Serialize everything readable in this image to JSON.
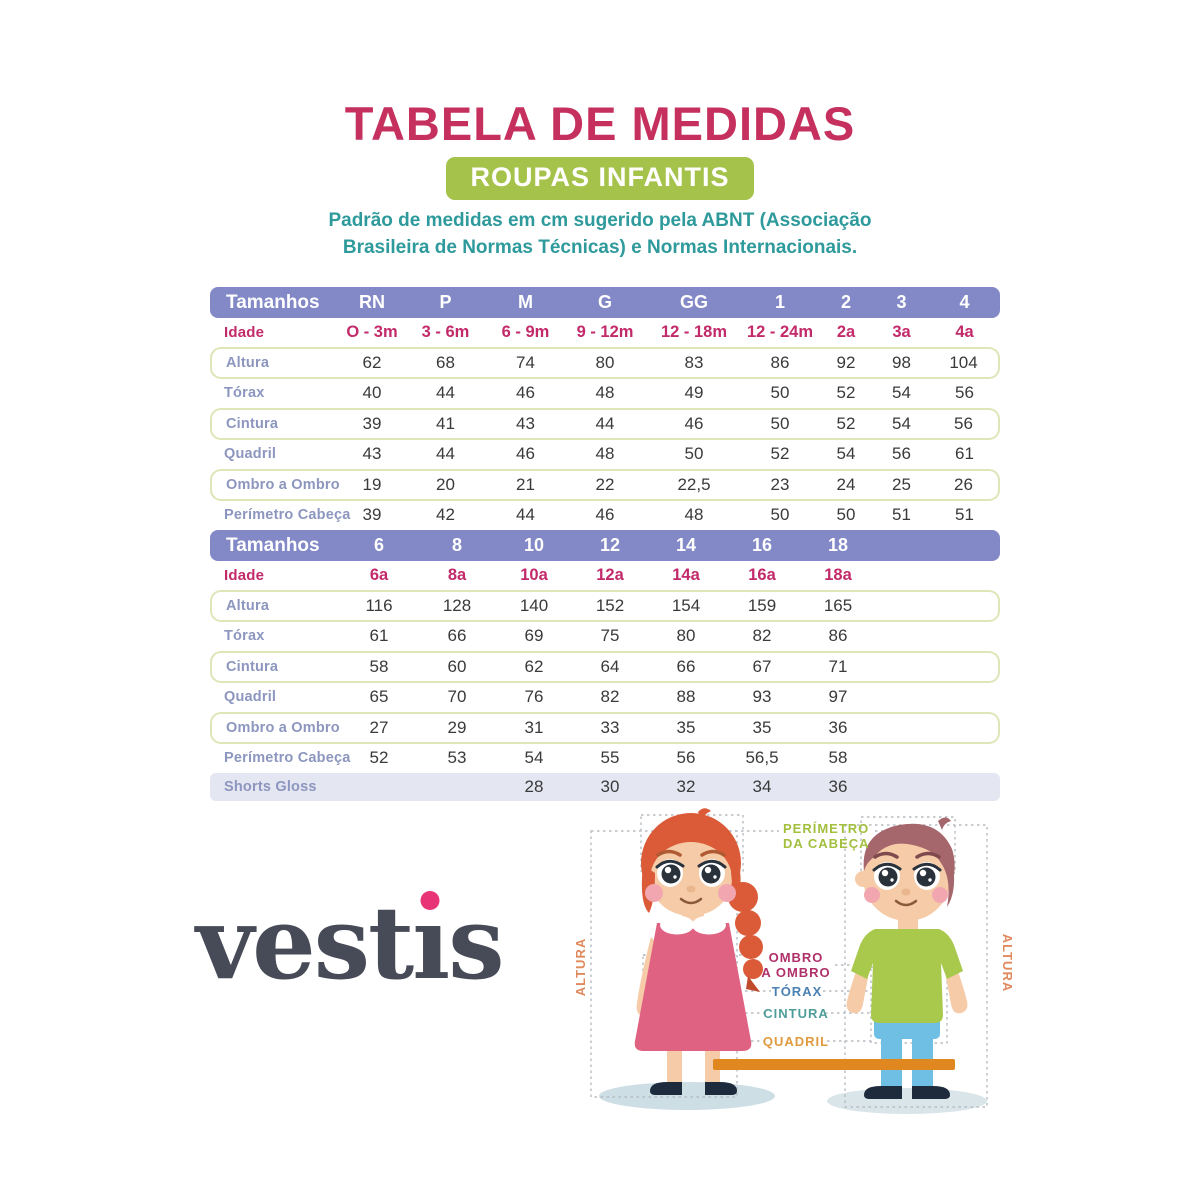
{
  "page": {
    "title": "TABELA DE MEDIDAS",
    "badge": "ROUPAS INFANTIS",
    "description_line1": "Padrão de medidas em cm sugerido pela ABNT (Associação",
    "description_line2": "Brasileira de Normas Técnicas) e Normas Internacionais."
  },
  "colors": {
    "title_pink": "#C5305F",
    "badge_green": "#A5C24A",
    "description_teal": "#2E9A9C",
    "header_purple": "#8289C6",
    "idade_magenta": "#C22A6A",
    "row_label_blue": "#8C96BE",
    "boxed_border_green": "#E0E5B8",
    "shorts_row_lavender": "#E4E6F1",
    "logo_dark": "#474B57",
    "logo_dot_pink": "#E93377"
  },
  "table1": {
    "header": [
      "Tamanhos",
      "RN",
      "P",
      "M",
      "G",
      "GG",
      "1",
      "2",
      "3",
      "4"
    ],
    "rows": [
      {
        "label": "Idade",
        "type": "idade",
        "values": [
          "O - 3m",
          "3 - 6m",
          "6 - 9m",
          "9 - 12m",
          "12 - 18m",
          "12 - 24m",
          "2a",
          "3a",
          "4a"
        ]
      },
      {
        "label": "Altura",
        "type": "boxed",
        "values": [
          "62",
          "68",
          "74",
          "80",
          "83",
          "86",
          "92",
          "98",
          "104"
        ]
      },
      {
        "label": "Tórax",
        "type": "plain",
        "values": [
          "40",
          "44",
          "46",
          "48",
          "49",
          "50",
          "52",
          "54",
          "56"
        ]
      },
      {
        "label": "Cintura",
        "type": "boxed",
        "values": [
          "39",
          "41",
          "43",
          "44",
          "46",
          "50",
          "52",
          "54",
          "56"
        ]
      },
      {
        "label": "Quadril",
        "type": "plain",
        "values": [
          "43",
          "44",
          "46",
          "48",
          "50",
          "52",
          "54",
          "56",
          "61"
        ]
      },
      {
        "label": "Ombro a Ombro",
        "type": "boxed",
        "values": [
          "19",
          "20",
          "21",
          "22",
          "22,5",
          "23",
          "24",
          "25",
          "26"
        ]
      },
      {
        "label": "Perímetro Cabeça",
        "type": "plain",
        "values": [
          "39",
          "42",
          "44",
          "46",
          "48",
          "50",
          "50",
          "51",
          "51"
        ]
      }
    ]
  },
  "table2": {
    "header": [
      "Tamanhos",
      "6",
      "8",
      "10",
      "12",
      "14",
      "16",
      "18",
      ""
    ],
    "rows": [
      {
        "label": "Idade",
        "type": "idade",
        "values": [
          "6a",
          "8a",
          "10a",
          "12a",
          "14a",
          "16a",
          "18a",
          ""
        ]
      },
      {
        "label": "Altura",
        "type": "boxed",
        "values": [
          "116",
          "128",
          "140",
          "152",
          "154",
          "159",
          "165",
          ""
        ]
      },
      {
        "label": "Tórax",
        "type": "plain",
        "values": [
          "61",
          "66",
          "69",
          "75",
          "80",
          "82",
          "86",
          ""
        ]
      },
      {
        "label": "Cintura",
        "type": "boxed",
        "values": [
          "58",
          "60",
          "62",
          "64",
          "66",
          "67",
          "71",
          ""
        ]
      },
      {
        "label": "Quadril",
        "type": "plain",
        "values": [
          "65",
          "70",
          "76",
          "82",
          "88",
          "93",
          "97",
          ""
        ]
      },
      {
        "label": "Ombro a Ombro",
        "type": "boxed",
        "values": [
          "27",
          "29",
          "31",
          "33",
          "35",
          "35",
          "36",
          ""
        ]
      },
      {
        "label": "Perímetro Cabeça",
        "type": "plain",
        "values": [
          "52",
          "53",
          "54",
          "55",
          "56",
          "56,5",
          "58",
          ""
        ]
      },
      {
        "label": "Shorts Gloss",
        "type": "shorts",
        "values": [
          "",
          "",
          "28",
          "30",
          "32",
          "34",
          "36",
          ""
        ]
      }
    ]
  },
  "logo": {
    "part1": "vest",
    "dotless_i": "ı",
    "part2": "s"
  },
  "illustration": {
    "perimetro_line1": "PERÍMETRO",
    "perimetro_line2": "DA CABEÇA",
    "ombro_line1": "OMBRO",
    "ombro_line2": "A OMBRO",
    "torax": "TÓRAX",
    "cintura": "CINTURA",
    "quadril": "QUADRIL",
    "altura_left": "ALTURA",
    "altura_right": "ALTURA"
  }
}
